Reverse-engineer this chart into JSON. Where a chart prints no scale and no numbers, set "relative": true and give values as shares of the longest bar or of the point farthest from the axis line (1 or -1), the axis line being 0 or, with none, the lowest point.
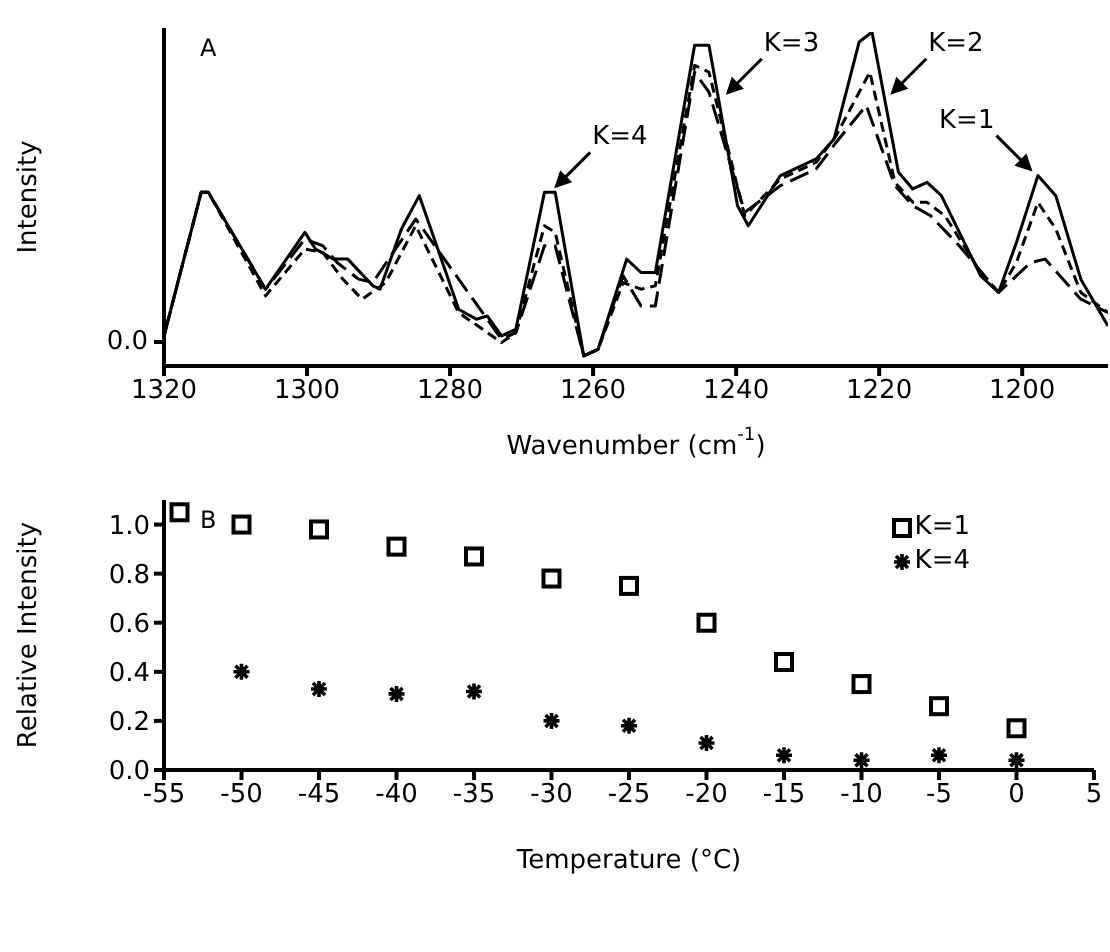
{
  "chart_data": [
    {
      "type": "line",
      "relative": true,
      "xlabel": "Wavenumber (cm$^{-1}$)",
      "ylabel": "Intensity",
      "xlim": [
        1320,
        1188
      ],
      "xticks": [
        1320,
        1300,
        1280,
        1260,
        1240,
        1220,
        1200
      ],
      "grid": false,
      "legend": false,
      "marker": "none",
      "annotations": [
        "A",
        "0.0",
        {
          "text": "K=4",
          "x": 1266,
          "y": 0.52
        },
        {
          "text": "K=3",
          "x": 1242,
          "y": 0.8
        },
        {
          "text": "K=2",
          "x": 1219,
          "y": 0.8
        },
        {
          "text": "K=1",
          "x": 1198,
          "y": 0.57
        }
      ],
      "series": [
        {
          "color": "#000000",
          "line_style": "solid",
          "x": [
            1320,
            1314.8,
            1313.8,
            1305.8,
            1300.3,
            1298.8,
            1296.3,
            1294.3,
            1290.8,
            1289.8,
            1286.8,
            1284.3,
            1278.8,
            1276.3,
            1274.8,
            1272.8,
            1270.8,
            1266.8,
            1265.3,
            1261.3,
            1259.3,
            1255.3,
            1253.3,
            1251.3,
            1245.8,
            1243.8,
            1239.8,
            1238.3,
            1233.8,
            1228.8,
            1226.3,
            1222.8,
            1221,
            1217.3,
            1215.3,
            1213.3,
            1211.3,
            1205.8,
            1203.3,
            1200.8,
            1197.8,
            1195.3,
            1191.8,
            1188
          ],
          "values": [
            0.09,
            0.52,
            0.52,
            0.23,
            0.4,
            0.35,
            0.32,
            0.32,
            0.24,
            0.23,
            0.41,
            0.51,
            0.17,
            0.14,
            0.15,
            0.09,
            0.11,
            0.52,
            0.52,
            0.03,
            0.05,
            0.32,
            0.28,
            0.28,
            0.96,
            0.96,
            0.48,
            0.42,
            0.57,
            0.62,
            0.68,
            0.97,
            1.0,
            0.58,
            0.53,
            0.55,
            0.51,
            0.27,
            0.22,
            0.37,
            0.57,
            0.51,
            0.26,
            0.12
          ]
        },
        {
          "color": "#000000",
          "line_style": "dashed",
          "x": [
            1320,
            1314.8,
            1313.8,
            1305.8,
            1300.3,
            1297.8,
            1295,
            1292.3,
            1289,
            1284.8,
            1278.8,
            1272.8,
            1270.8,
            1266.8,
            1265.3,
            1261.3,
            1259.3,
            1255.8,
            1253.3,
            1251.3,
            1245.8,
            1243.8,
            1238.8,
            1233.8,
            1228.8,
            1226,
            1221.3,
            1217.8,
            1215.3,
            1213.3,
            1210.8,
            1205.8,
            1203.3,
            1200.8,
            1197.8,
            1195.3,
            1191.8,
            1188
          ],
          "values": [
            0.09,
            0.52,
            0.52,
            0.21,
            0.35,
            0.34,
            0.26,
            0.2,
            0.25,
            0.42,
            0.16,
            0.07,
            0.1,
            0.42,
            0.4,
            0.03,
            0.05,
            0.25,
            0.23,
            0.24,
            0.9,
            0.88,
            0.45,
            0.56,
            0.61,
            0.69,
            0.88,
            0.55,
            0.49,
            0.49,
            0.45,
            0.28,
            0.22,
            0.31,
            0.49,
            0.41,
            0.22,
            0.16
          ]
        },
        {
          "color": "#000000",
          "line_style": "dashed",
          "x": [
            1320,
            1314.8,
            1313.8,
            1305.8,
            1300.3,
            1297.8,
            1295.8,
            1292.8,
            1290.8,
            1284.8,
            1276.8,
            1272.8,
            1270.8,
            1266.8,
            1265.3,
            1261.3,
            1259.3,
            1255.8,
            1253.3,
            1251.3,
            1245.8,
            1243.8,
            1238.8,
            1233.8,
            1228.8,
            1226,
            1221.8,
            1217.8,
            1215.3,
            1212.8,
            1208.8,
            1203.3,
            1198.8,
            1196.8,
            1191.8,
            1188
          ],
          "values": [
            0.09,
            0.52,
            0.52,
            0.23,
            0.38,
            0.36,
            0.31,
            0.26,
            0.25,
            0.44,
            0.2,
            0.08,
            0.1,
            0.36,
            0.36,
            0.03,
            0.05,
            0.27,
            0.18,
            0.18,
            0.88,
            0.82,
            0.46,
            0.54,
            0.59,
            0.67,
            0.78,
            0.54,
            0.48,
            0.45,
            0.36,
            0.22,
            0.31,
            0.32,
            0.2,
            0.16
          ]
        }
      ]
    },
    {
      "type": "scatter",
      "xlabel": "Temperature (°C)",
      "ylabel": "Relative Intensity",
      "xlim": [
        -55,
        5
      ],
      "xticks": [
        -55,
        -50,
        -45,
        -40,
        -35,
        -30,
        -25,
        -20,
        -15,
        -10,
        -5,
        0,
        5
      ],
      "ylim": [
        0,
        1.1
      ],
      "yticks": [
        {
          "value": 0,
          "label": "0.0"
        },
        {
          "value": 0.2,
          "label": "0.2"
        },
        {
          "value": 0.4,
          "label": "0.4"
        },
        {
          "value": 0.6,
          "label": "0.6"
        },
        {
          "value": 0.8,
          "label": "0.8"
        },
        {
          "value": 1,
          "label": "1.0"
        }
      ],
      "grid": false,
      "legend": "top right",
      "annotations": [
        "B"
      ],
      "series": [
        {
          "name": "K=1",
          "color": "#000000",
          "marker": "square",
          "x": [
            -54,
            -50,
            -45,
            -40,
            -35,
            -30,
            -25,
            -20,
            -15,
            -10,
            -5,
            0
          ],
          "values": [
            1.05,
            1.0,
            0.98,
            0.91,
            0.87,
            0.78,
            0.75,
            0.6,
            0.44,
            0.35,
            0.26,
            0.17
          ]
        },
        {
          "name": "K=4",
          "color": "#000000",
          "marker": "cross",
          "x": [
            -50,
            -45,
            -40,
            -35,
            -30,
            -25,
            -20,
            -15,
            -10,
            -5,
            0
          ],
          "values": [
            0.4,
            0.33,
            0.31,
            0.32,
            0.2,
            0.18,
            0.11,
            0.06,
            0.04,
            0.06,
            0.04
          ]
        }
      ]
    }
  ]
}
